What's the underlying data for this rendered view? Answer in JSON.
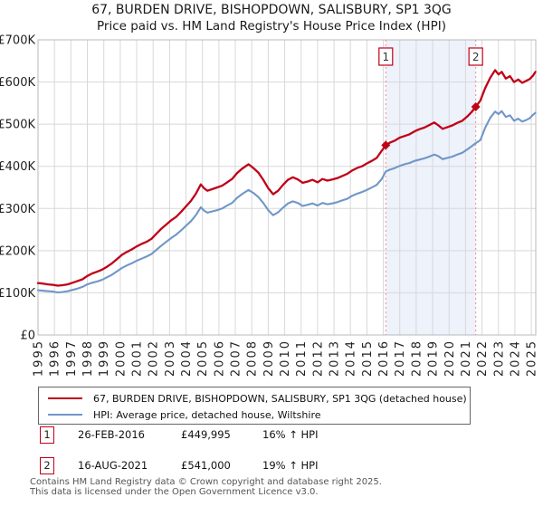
{
  "title": {
    "line1": "67, BURDEN DRIVE, BISHOPDOWN, SALISBURY, SP1 3QG",
    "line2": "Price paid vs. HM Land Registry's House Price Index (HPI)"
  },
  "chart_data": {
    "type": "line",
    "title": "67, BURDEN DRIVE, BISHOPDOWN, SALISBURY, SP1 3QG",
    "subtitle": "Price paid vs. HM Land Registry's House Price Index (HPI)",
    "x_axis": {
      "start_year": 1995,
      "end_year": 2025,
      "tick_step": 1
    },
    "y_axis": {
      "min": 0,
      "max": 700000,
      "tick_labels": [
        "£0",
        "£100K",
        "£200K",
        "£300K",
        "£400K",
        "£500K",
        "£600K",
        "£700K"
      ]
    },
    "grid": true,
    "legend_position": "bottom",
    "colors": {
      "red": "#c00018",
      "blue": "#7096c8",
      "grid": "#d8d8d8",
      "border": "#b8b8b8",
      "shade": "#edf2fb",
      "dashed": "#ef8a8a",
      "tick_text": "#222"
    },
    "shaded_region": {
      "from": 2016.15,
      "to": 2021.62
    },
    "sales": [
      {
        "label": "1",
        "year": 2016.15,
        "value_k": 450,
        "date": "26-FEB-2016",
        "price": "£449,995",
        "vs_hpi": "16% ↑ HPI"
      },
      {
        "label": "2",
        "year": 2021.62,
        "value_k": 541,
        "date": "16-AUG-2021",
        "price": "£541,000",
        "vs_hpi": "19% ↑ HPI"
      }
    ],
    "series": [
      {
        "name": "67, BURDEN DRIVE, BISHOPDOWN, SALISBURY, SP1 3QG (detached house)",
        "color": "#c00018",
        "points": [
          [
            1995.0,
            123
          ],
          [
            1995.3,
            122
          ],
          [
            1995.6,
            120
          ],
          [
            1995.9,
            119
          ],
          [
            1996.2,
            117
          ],
          [
            1996.5,
            118
          ],
          [
            1996.8,
            120
          ],
          [
            1997.1,
            124
          ],
          [
            1997.4,
            128
          ],
          [
            1997.7,
            132
          ],
          [
            1998.0,
            140
          ],
          [
            1998.3,
            146
          ],
          [
            1998.6,
            150
          ],
          [
            1998.9,
            155
          ],
          [
            1999.2,
            162
          ],
          [
            1999.5,
            170
          ],
          [
            1999.8,
            180
          ],
          [
            2000.1,
            190
          ],
          [
            2000.4,
            197
          ],
          [
            2000.7,
            203
          ],
          [
            2001.0,
            210
          ],
          [
            2001.3,
            216
          ],
          [
            2001.6,
            221
          ],
          [
            2001.9,
            228
          ],
          [
            2002.2,
            240
          ],
          [
            2002.5,
            252
          ],
          [
            2002.8,
            262
          ],
          [
            2003.1,
            272
          ],
          [
            2003.4,
            280
          ],
          [
            2003.7,
            292
          ],
          [
            2004.0,
            305
          ],
          [
            2004.3,
            318
          ],
          [
            2004.6,
            335
          ],
          [
            2004.9,
            357
          ],
          [
            2005.1,
            348
          ],
          [
            2005.3,
            342
          ],
          [
            2005.6,
            346
          ],
          [
            2005.9,
            350
          ],
          [
            2006.2,
            354
          ],
          [
            2006.5,
            362
          ],
          [
            2006.8,
            370
          ],
          [
            2007.1,
            384
          ],
          [
            2007.4,
            394
          ],
          [
            2007.8,
            405
          ],
          [
            2008.1,
            396
          ],
          [
            2008.4,
            385
          ],
          [
            2008.7,
            368
          ],
          [
            2009.0,
            348
          ],
          [
            2009.3,
            334
          ],
          [
            2009.6,
            342
          ],
          [
            2009.9,
            356
          ],
          [
            2010.2,
            368
          ],
          [
            2010.5,
            374
          ],
          [
            2010.8,
            369
          ],
          [
            2011.1,
            361
          ],
          [
            2011.4,
            364
          ],
          [
            2011.7,
            368
          ],
          [
            2012.0,
            362
          ],
          [
            2012.3,
            370
          ],
          [
            2012.6,
            366
          ],
          [
            2012.9,
            369
          ],
          [
            2013.2,
            372
          ],
          [
            2013.5,
            377
          ],
          [
            2013.8,
            382
          ],
          [
            2014.1,
            390
          ],
          [
            2014.4,
            396
          ],
          [
            2014.7,
            400
          ],
          [
            2015.0,
            407
          ],
          [
            2015.3,
            413
          ],
          [
            2015.6,
            420
          ],
          [
            2015.9,
            437
          ],
          [
            2016.15,
            450
          ],
          [
            2016.4,
            456
          ],
          [
            2016.7,
            461
          ],
          [
            2017.0,
            468
          ],
          [
            2017.3,
            472
          ],
          [
            2017.6,
            476
          ],
          [
            2017.9,
            483
          ],
          [
            2018.2,
            488
          ],
          [
            2018.5,
            492
          ],
          [
            2018.8,
            498
          ],
          [
            2019.1,
            504
          ],
          [
            2019.35,
            497
          ],
          [
            2019.6,
            489
          ],
          [
            2019.9,
            493
          ],
          [
            2020.2,
            497
          ],
          [
            2020.5,
            503
          ],
          [
            2020.8,
            508
          ],
          [
            2021.1,
            518
          ],
          [
            2021.35,
            528
          ],
          [
            2021.62,
            541
          ],
          [
            2021.9,
            556
          ],
          [
            2022.2,
            586
          ],
          [
            2022.5,
            610
          ],
          [
            2022.8,
            628
          ],
          [
            2023.0,
            618
          ],
          [
            2023.2,
            624
          ],
          [
            2023.45,
            608
          ],
          [
            2023.7,
            614
          ],
          [
            2023.95,
            600
          ],
          [
            2024.2,
            606
          ],
          [
            2024.45,
            598
          ],
          [
            2024.7,
            603
          ],
          [
            2024.9,
            607
          ],
          [
            2025.1,
            615
          ],
          [
            2025.25,
            624
          ]
        ]
      },
      {
        "name": "HPI: Average price, detached house, Wiltshire",
        "color": "#7096c8",
        "points": [
          [
            1995.0,
            106
          ],
          [
            1995.3,
            105
          ],
          [
            1995.6,
            104
          ],
          [
            1995.9,
            103
          ],
          [
            1996.2,
            101
          ],
          [
            1996.5,
            102
          ],
          [
            1996.8,
            104
          ],
          [
            1997.1,
            107
          ],
          [
            1997.4,
            110
          ],
          [
            1997.7,
            114
          ],
          [
            1998.0,
            120
          ],
          [
            1998.3,
            124
          ],
          [
            1998.6,
            127
          ],
          [
            1998.9,
            131
          ],
          [
            1999.2,
            137
          ],
          [
            1999.5,
            143
          ],
          [
            1999.8,
            151
          ],
          [
            2000.1,
            159
          ],
          [
            2000.4,
            165
          ],
          [
            2000.7,
            170
          ],
          [
            2001.0,
            176
          ],
          [
            2001.3,
            181
          ],
          [
            2001.6,
            186
          ],
          [
            2001.9,
            192
          ],
          [
            2002.2,
            202
          ],
          [
            2002.5,
            212
          ],
          [
            2002.8,
            221
          ],
          [
            2003.1,
            230
          ],
          [
            2003.4,
            238
          ],
          [
            2003.7,
            248
          ],
          [
            2004.0,
            259
          ],
          [
            2004.3,
            270
          ],
          [
            2004.6,
            284
          ],
          [
            2004.9,
            303
          ],
          [
            2005.1,
            295
          ],
          [
            2005.3,
            290
          ],
          [
            2005.6,
            293
          ],
          [
            2005.9,
            296
          ],
          [
            2006.2,
            300
          ],
          [
            2006.5,
            307
          ],
          [
            2006.8,
            313
          ],
          [
            2007.1,
            325
          ],
          [
            2007.4,
            334
          ],
          [
            2007.8,
            344
          ],
          [
            2008.1,
            337
          ],
          [
            2008.4,
            327
          ],
          [
            2008.7,
            313
          ],
          [
            2009.0,
            296
          ],
          [
            2009.3,
            284
          ],
          [
            2009.6,
            291
          ],
          [
            2009.9,
            302
          ],
          [
            2010.2,
            312
          ],
          [
            2010.5,
            317
          ],
          [
            2010.8,
            313
          ],
          [
            2011.1,
            306
          ],
          [
            2011.4,
            309
          ],
          [
            2011.7,
            312
          ],
          [
            2012.0,
            307
          ],
          [
            2012.3,
            313
          ],
          [
            2012.6,
            310
          ],
          [
            2012.9,
            312
          ],
          [
            2013.2,
            315
          ],
          [
            2013.5,
            319
          ],
          [
            2013.8,
            323
          ],
          [
            2014.1,
            330
          ],
          [
            2014.4,
            335
          ],
          [
            2014.7,
            339
          ],
          [
            2015.0,
            344
          ],
          [
            2015.3,
            350
          ],
          [
            2015.6,
            356
          ],
          [
            2015.9,
            370
          ],
          [
            2016.15,
            388
          ],
          [
            2016.4,
            392
          ],
          [
            2016.7,
            396
          ],
          [
            2017.0,
            401
          ],
          [
            2017.3,
            405
          ],
          [
            2017.6,
            408
          ],
          [
            2017.9,
            413
          ],
          [
            2018.2,
            416
          ],
          [
            2018.5,
            419
          ],
          [
            2018.8,
            423
          ],
          [
            2019.1,
            428
          ],
          [
            2019.35,
            424
          ],
          [
            2019.6,
            417
          ],
          [
            2019.9,
            420
          ],
          [
            2020.2,
            423
          ],
          [
            2020.5,
            428
          ],
          [
            2020.8,
            432
          ],
          [
            2021.1,
            440
          ],
          [
            2021.35,
            447
          ],
          [
            2021.62,
            455
          ],
          [
            2021.9,
            462
          ],
          [
            2022.2,
            492
          ],
          [
            2022.5,
            515
          ],
          [
            2022.8,
            530
          ],
          [
            2023.0,
            524
          ],
          [
            2023.2,
            531
          ],
          [
            2023.45,
            517
          ],
          [
            2023.7,
            521
          ],
          [
            2023.95,
            508
          ],
          [
            2024.2,
            513
          ],
          [
            2024.45,
            506
          ],
          [
            2024.7,
            510
          ],
          [
            2024.9,
            514
          ],
          [
            2025.1,
            522
          ],
          [
            2025.25,
            527
          ]
        ]
      }
    ]
  },
  "legend": {
    "item1": "67, BURDEN DRIVE, BISHOPDOWN, SALISBURY, SP1 3QG (detached house)",
    "item2": "HPI: Average price, detached house, Wiltshire"
  },
  "annotations": [
    {
      "num": "1",
      "date": "26-FEB-2016",
      "price": "£449,995",
      "hpi": "16% ↑ HPI"
    },
    {
      "num": "2",
      "date": "16-AUG-2021",
      "price": "£541,000",
      "hpi": "19% ↑ HPI"
    }
  ],
  "footer": {
    "line1": "Contains HM Land Registry data © Crown copyright and database right 2025.",
    "line2": "This data is licensed under the Open Government Licence v3.0."
  }
}
